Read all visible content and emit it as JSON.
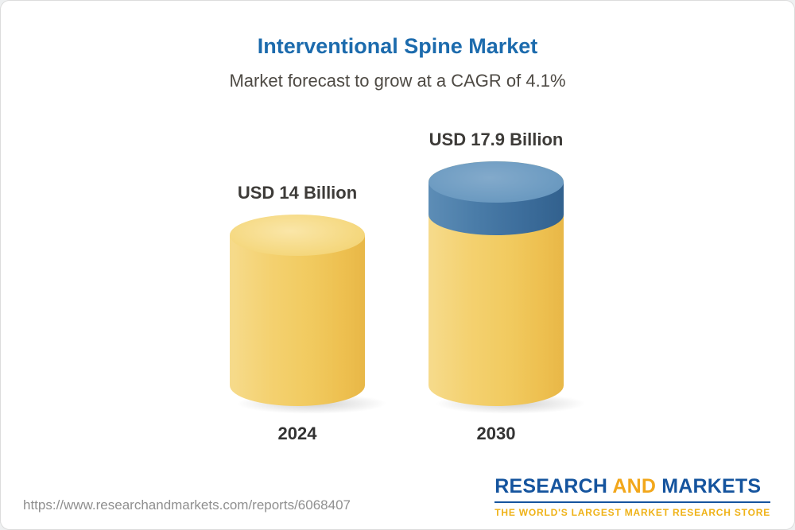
{
  "chart_data": {
    "type": "bar",
    "subtype": "3d-cylinder",
    "title": "Interventional Spine Market",
    "subtitle": "Market forecast to grow at a CAGR of 4.1%",
    "cagr_percent": 4.1,
    "unit": "USD Billion",
    "categories": [
      "2024",
      "2030"
    ],
    "values": [
      14,
      17.9
    ],
    "value_labels": [
      "USD 14 Billion",
      "USD 17.9 Billion"
    ],
    "growth_base_value": 14,
    "legend": "none",
    "grid": false,
    "colors": {
      "base_segment": "#F2CF6D",
      "growth_segment": "#3E6F9D",
      "title": "#1C6BAD"
    }
  },
  "footer": {
    "url": "https://www.researchandmarkets.com/reports/6068407",
    "logo": {
      "part1": "RESEARCH",
      "part2": "AND",
      "part3": "MARKETS",
      "tagline": "THE WORLD'S LARGEST MARKET RESEARCH STORE"
    }
  }
}
